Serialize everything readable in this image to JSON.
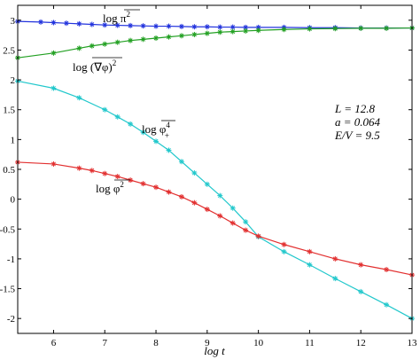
{
  "chart_data": {
    "type": "line",
    "xlabel": "log t",
    "ylabel": "",
    "xlim": [
      5.3,
      13
    ],
    "ylim": [
      -2.25,
      3.25
    ],
    "xticks": [
      6,
      7,
      8,
      9,
      10,
      11,
      12,
      13
    ],
    "yticks": [
      -2,
      -1.5,
      -1,
      -0.5,
      0,
      0.5,
      1,
      1.5,
      2,
      2.5,
      3
    ],
    "grid": false,
    "marker": "asterisk",
    "series": [
      {
        "name": "log π²",
        "color": "#2233dd",
        "x": [
          5.3,
          5.75,
          6.0,
          6.25,
          6.5,
          6.75,
          7.0,
          7.25,
          7.5,
          7.75,
          8.0,
          8.25,
          8.5,
          8.75,
          9.0,
          9.25,
          9.5,
          9.75,
          10.0,
          10.5,
          11.0,
          11.5,
          12.0,
          12.5,
          13.0
        ],
        "y": [
          2.98,
          2.97,
          2.96,
          2.95,
          2.94,
          2.93,
          2.92,
          2.915,
          2.91,
          2.905,
          2.9,
          2.9,
          2.895,
          2.89,
          2.89,
          2.885,
          2.885,
          2.88,
          2.88,
          2.88,
          2.875,
          2.875,
          2.87,
          2.87,
          2.87
        ]
      },
      {
        "name": "log (∇φ)²",
        "color": "#22a022",
        "x": [
          5.3,
          6.0,
          6.5,
          6.75,
          7.0,
          7.25,
          7.5,
          7.75,
          8.0,
          8.25,
          8.5,
          8.75,
          9.0,
          9.25,
          9.5,
          9.75,
          10.0,
          10.5,
          11.0,
          11.5,
          12.0,
          12.5,
          13.0
        ],
        "y": [
          2.37,
          2.45,
          2.53,
          2.57,
          2.6,
          2.63,
          2.66,
          2.68,
          2.7,
          2.72,
          2.74,
          2.76,
          2.78,
          2.8,
          2.81,
          2.82,
          2.83,
          2.845,
          2.855,
          2.86,
          2.865,
          2.865,
          2.87
        ]
      },
      {
        "name": "log φ⁴₊",
        "color": "#22c8cc",
        "x": [
          5.3,
          6.0,
          6.5,
          7.0,
          7.25,
          7.5,
          7.75,
          8.0,
          8.25,
          8.5,
          8.75,
          9.0,
          9.25,
          9.5,
          9.75,
          10.0,
          10.5,
          11.0,
          11.5,
          12.0,
          12.5,
          13.0
        ],
        "y": [
          1.98,
          1.86,
          1.7,
          1.5,
          1.38,
          1.26,
          1.12,
          0.97,
          0.82,
          0.63,
          0.44,
          0.25,
          0.06,
          -0.15,
          -0.38,
          -0.63,
          -0.88,
          -1.1,
          -1.33,
          -1.55,
          -1.77,
          -2.0
        ]
      },
      {
        "name": "log φ²",
        "color": "#e23030",
        "x": [
          5.3,
          6.0,
          6.5,
          6.75,
          7.0,
          7.25,
          7.5,
          7.75,
          8.0,
          8.25,
          8.5,
          8.75,
          9.0,
          9.25,
          9.5,
          9.75,
          10.0,
          10.5,
          11.0,
          11.5,
          12.0,
          12.5,
          13.0
        ],
        "y": [
          0.62,
          0.59,
          0.52,
          0.48,
          0.43,
          0.38,
          0.32,
          0.26,
          0.2,
          0.12,
          0.04,
          -0.06,
          -0.17,
          -0.28,
          -0.4,
          -0.52,
          -0.62,
          -0.76,
          -0.88,
          -1.0,
          -1.1,
          -1.18,
          -1.27
        ]
      }
    ],
    "labels": {
      "pi2": {
        "prefix": "log ",
        "body": "π",
        "sup": "2"
      },
      "grad": {
        "prefix": "log ",
        "body": "(∇φ)",
        "sup": "2"
      },
      "phi4": {
        "prefix": "log ",
        "body": "φ",
        "sup": "4",
        "sub": "+"
      },
      "phi2": {
        "prefix": "log ",
        "body": "φ",
        "sup": "2"
      }
    },
    "annotations": {
      "L": "L = 12.8",
      "a": "a = 0.064",
      "EV": "E/V = 9.5"
    }
  }
}
